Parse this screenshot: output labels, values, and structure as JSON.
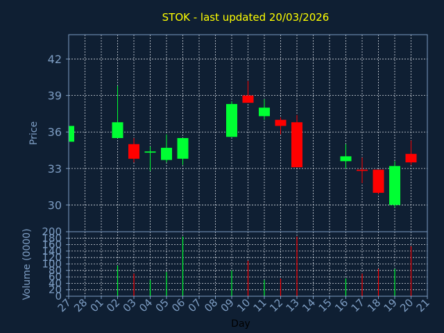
{
  "chart_data": {
    "type": "candlestick",
    "title": "STOK - last updated 20/03/2026",
    "ylabel": "Price",
    "volume_label": "Volume (0000)",
    "xlabel": "Day",
    "ylim": [
      27.8,
      44
    ],
    "yticks": [
      30,
      33,
      36,
      39,
      42
    ],
    "volume_ylim": [
      0,
      200
    ],
    "volume_yticks": [
      0,
      20,
      40,
      60,
      80,
      100,
      120,
      140,
      160,
      180,
      200
    ],
    "grid": true,
    "colors": {
      "up": "#00ff33",
      "down": "#ff0000",
      "background": "#0f1f33",
      "axis": "#7e9ec4",
      "title": "#ffff00"
    },
    "x_labels": [
      "27",
      "28",
      "01",
      "02",
      "03",
      "04",
      "05",
      "06",
      "07",
      "08",
      "09",
      "10",
      "11",
      "12",
      "13",
      "14",
      "15",
      "16",
      "17",
      "18",
      "19",
      "20",
      "21"
    ],
    "candles": [
      {
        "x": "27",
        "open": 35.2,
        "high": 36.5,
        "low": 35.2,
        "close": 36.5,
        "volume": 0
      },
      {
        "x": "02",
        "open": 35.5,
        "high": 39.8,
        "low": 35.5,
        "close": 36.8,
        "volume": 95
      },
      {
        "x": "03",
        "open": 35.0,
        "high": 35.5,
        "low": 33.5,
        "close": 33.8,
        "volume": 70
      },
      {
        "x": "04",
        "open": 34.3,
        "high": 34.8,
        "low": 32.8,
        "close": 34.4,
        "volume": 50
      },
      {
        "x": "05",
        "open": 33.7,
        "high": 35.8,
        "low": 33.5,
        "close": 34.7,
        "volume": 75
      },
      {
        "x": "06",
        "open": 33.8,
        "high": 35.5,
        "low": 33.3,
        "close": 35.5,
        "volume": 185
      },
      {
        "x": "09",
        "open": 35.6,
        "high": 38.5,
        "low": 35.6,
        "close": 38.3,
        "volume": 80
      },
      {
        "x": "10",
        "open": 39.0,
        "high": 40.2,
        "low": 38.4,
        "close": 38.4,
        "volume": 110
      },
      {
        "x": "11",
        "open": 37.3,
        "high": 38.7,
        "low": 37.0,
        "close": 38.0,
        "volume": 50
      },
      {
        "x": "12",
        "open": 37.0,
        "high": 37.2,
        "low": 35.8,
        "close": 36.5,
        "volume": 55
      },
      {
        "x": "13",
        "open": 36.8,
        "high": 37.4,
        "low": 33.1,
        "close": 33.1,
        "volume": 185
      },
      {
        "x": "16",
        "open": 33.6,
        "high": 35.0,
        "low": 33.0,
        "close": 34.0,
        "volume": 55
      },
      {
        "x": "17",
        "open": 32.9,
        "high": 33.9,
        "low": 31.8,
        "close": 32.8,
        "volume": 70
      },
      {
        "x": "18",
        "open": 32.9,
        "high": 32.9,
        "low": 30.9,
        "close": 31.0,
        "volume": 85
      },
      {
        "x": "19",
        "open": 30.0,
        "high": 33.6,
        "low": 29.8,
        "close": 33.2,
        "volume": 85
      },
      {
        "x": "20",
        "open": 34.2,
        "high": 35.3,
        "low": 33.3,
        "close": 33.5,
        "volume": 155
      }
    ]
  }
}
